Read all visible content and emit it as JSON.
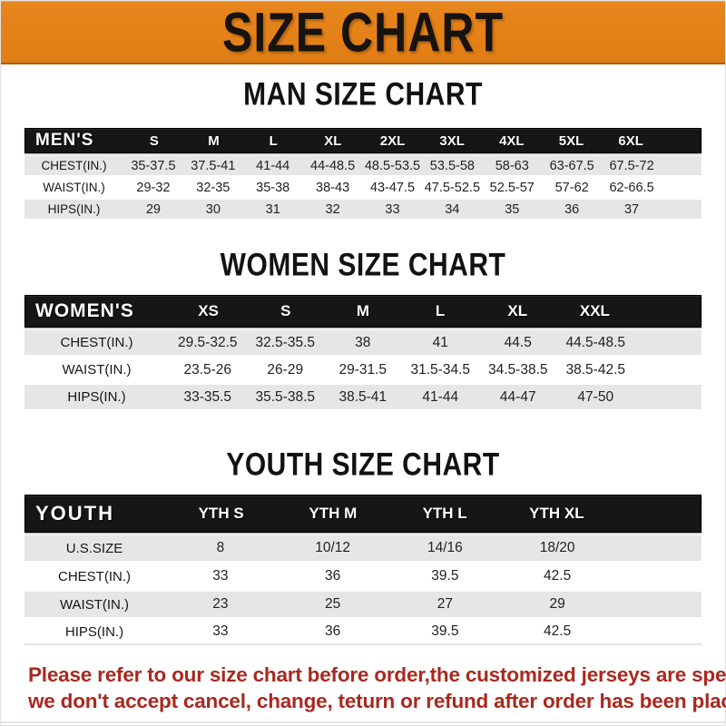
{
  "colors": {
    "accent_orange": "#E8861E",
    "bar_black": "#161616",
    "row_gray": "#E6E6E6",
    "footer_red": "#A8291F"
  },
  "banner": {
    "title": "SIZE CHART"
  },
  "sections": [
    {
      "heading": "MAN SIZE CHART",
      "label": "MEN'S",
      "columns": [
        "S",
        "M",
        "L",
        "XL",
        "2XL",
        "3XL",
        "4XL",
        "5XL",
        "6XL"
      ],
      "rows": [
        {
          "label": "CHEST(IN.)",
          "values": [
            "35-37.5",
            "37.5-41",
            "41-44",
            "44-48.5",
            "48.5-53.5",
            "53.5-58",
            "58-63",
            "63-67.5",
            "67.5-72"
          ]
        },
        {
          "label": "WAIST(IN.)",
          "values": [
            "29-32",
            "32-35",
            "35-38",
            "38-43",
            "43-47.5",
            "47.5-52.5",
            "52.5-57",
            "57-62",
            "62-66.5"
          ]
        },
        {
          "label": "HIPS(IN.)",
          "values": [
            "29",
            "30",
            "31",
            "32",
            "33",
            "34",
            "35",
            "36",
            "37"
          ]
        }
      ]
    },
    {
      "heading": "WOMEN SIZE CHART",
      "label": "WOMEN'S",
      "columns": [
        "XS",
        "S",
        "M",
        "L",
        "XL",
        "XXL"
      ],
      "rows": [
        {
          "label": "CHEST(IN.)",
          "values": [
            "29.5-32.5",
            "32.5-35.5",
            "38",
            "41",
            "44.5",
            "44.5-48.5"
          ]
        },
        {
          "label": "WAIST(IN.)",
          "values": [
            "23.5-26",
            "26-29",
            "29-31.5",
            "31.5-34.5",
            "34.5-38.5",
            "38.5-42.5"
          ]
        },
        {
          "label": "HIPS(IN.)",
          "values": [
            "33-35.5",
            "35.5-38.5",
            "38.5-41",
            "41-44",
            "44-47",
            "47-50"
          ]
        }
      ]
    },
    {
      "heading": "YOUTH SIZE CHART",
      "label": "YOUTH",
      "columns": [
        "YTH S",
        "YTH M",
        "YTH L",
        "YTH XL"
      ],
      "rows": [
        {
          "label": "U.S.SIZE",
          "values": [
            "8",
            "10/12",
            "14/16",
            "18/20"
          ]
        },
        {
          "label": "CHEST(IN.)",
          "values": [
            "33",
            "36",
            "39.5",
            "42.5"
          ]
        },
        {
          "label": "WAIST(IN.)",
          "values": [
            "23",
            "25",
            "27",
            "29"
          ]
        },
        {
          "label": "HIPS(IN.)",
          "values": [
            "33",
            "36",
            "39.5",
            "42.5"
          ]
        }
      ]
    }
  ],
  "footer": {
    "lines": [
      "Please refer to our size chart before order,the customized jerseys are special products,",
      "we don't accept cancel, change, teturn or refund after order has been placed!"
    ]
  }
}
